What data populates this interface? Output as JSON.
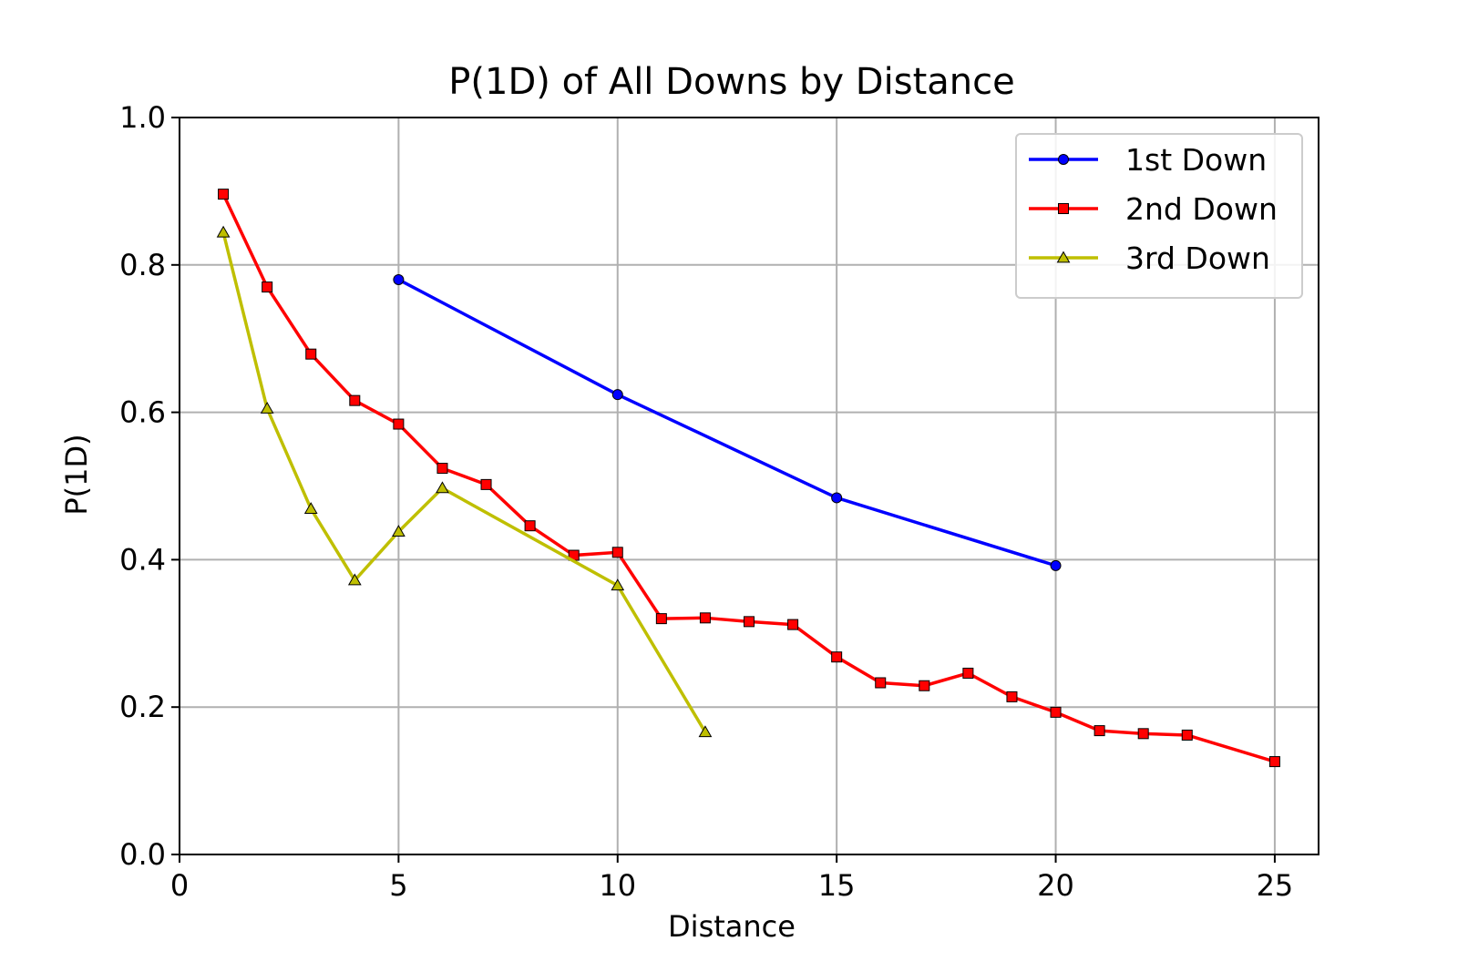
{
  "chart_data": {
    "type": "line",
    "title": "P(1D) of All Downs by Distance",
    "xlabel": "Distance",
    "ylabel": "P(1D)",
    "xlim": [
      0,
      26
    ],
    "ylim": [
      0.0,
      1.0
    ],
    "xticks": [
      0,
      5,
      10,
      15,
      20,
      25
    ],
    "xtick_labels": [
      "0",
      "5",
      "10",
      "15",
      "20",
      "25"
    ],
    "yticks": [
      0.0,
      0.2,
      0.4,
      0.6,
      0.8,
      1.0
    ],
    "ytick_labels": [
      "0.0",
      "0.2",
      "0.4",
      "0.6",
      "0.8",
      "1.0"
    ],
    "grid": true,
    "legend_position": "top-right",
    "series": [
      {
        "name": "1st Down",
        "color": "#0000ff",
        "marker": "circle",
        "x": [
          5,
          10,
          15,
          20
        ],
        "y": [
          0.78,
          0.624,
          0.484,
          0.392
        ]
      },
      {
        "name": "2nd Down",
        "color": "#ff0000",
        "marker": "square",
        "x": [
          1,
          2,
          3,
          4,
          5,
          6,
          7,
          8,
          9,
          10,
          11,
          12,
          13,
          14,
          15,
          16,
          17,
          18,
          19,
          20,
          21,
          22,
          23,
          25
        ],
        "y": [
          0.896,
          0.77,
          0.679,
          0.616,
          0.584,
          0.524,
          0.502,
          0.446,
          0.406,
          0.41,
          0.32,
          0.321,
          0.316,
          0.312,
          0.268,
          0.233,
          0.229,
          0.246,
          0.214,
          0.193,
          0.168,
          0.164,
          0.162,
          0.126
        ]
      },
      {
        "name": "3rd Down",
        "color": "#bfbf00",
        "marker": "triangle",
        "x": [
          1,
          2,
          3,
          4,
          5,
          6,
          10,
          12
        ],
        "y": [
          0.844,
          0.605,
          0.469,
          0.372,
          0.438,
          0.497,
          0.365,
          0.166
        ]
      }
    ]
  }
}
